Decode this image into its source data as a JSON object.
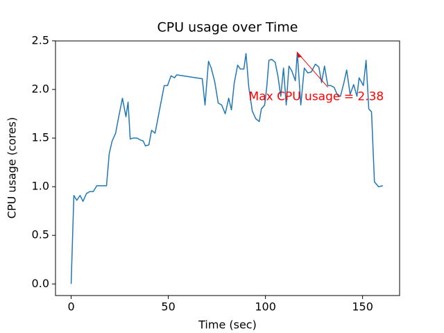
{
  "chart_data": {
    "type": "line",
    "title": "CPU usage over Time",
    "x_label": "Time (sec)",
    "y_label": "CPU usage (cores)",
    "series": [
      {
        "name": "CPU usage",
        "color": "#1f77b4",
        "x": [
          0,
          1.4,
          2.9,
          4.6,
          6.1,
          7.9,
          9.6,
          11.4,
          13.2,
          15.7,
          18.2,
          19.6,
          21.1,
          22.9,
          24.3,
          26.4,
          28.2,
          29.3,
          30.4,
          31.8,
          33.9,
          35.7,
          37.1,
          38.2,
          40,
          41.4,
          43.2,
          45.4,
          47.9,
          49.6,
          51.4,
          53.2,
          54.3,
          67.5,
          68.9,
          70.7,
          72.1,
          73.9,
          75.7,
          77.5,
          79.3,
          81.1,
          82.5,
          83.9,
          85.7,
          87.1,
          88.9,
          90,
          91.4,
          93.2,
          95,
          96.8,
          97.9,
          99.6,
          100.7,
          101.8,
          103.2,
          105,
          106.4,
          107.9,
          109.3,
          110.7,
          112.1,
          113.6,
          115.4,
          116.4,
          118.2,
          120,
          121.8,
          123.6,
          125.7,
          127.5,
          128.9,
          130.4,
          132.1,
          133.6,
          135.4,
          137.1,
          138.6,
          140.4,
          141.8,
          143.6,
          145.4,
          147.1,
          148.2,
          150.4,
          151.8,
          153.2,
          154.6,
          156.1,
          158.2,
          160.4
        ],
        "values": [
          0,
          0.91,
          0.86,
          0.91,
          0.85,
          0.93,
          0.95,
          0.95,
          1.01,
          1.01,
          1.01,
          1.34,
          1.47,
          1.55,
          1.7,
          1.91,
          1.72,
          1.87,
          1.49,
          1.5,
          1.5,
          1.48,
          1.47,
          1.42,
          1.43,
          1.58,
          1.55,
          1.78,
          2.04,
          2.04,
          2.14,
          2.12,
          2.15,
          2.11,
          1.84,
          2.29,
          2.22,
          2.08,
          1.86,
          1.84,
          1.75,
          1.91,
          1.79,
          2.06,
          2.25,
          2.21,
          2.21,
          2.37,
          2.03,
          1.78,
          1.7,
          1.67,
          1.8,
          1.84,
          2.03,
          2.3,
          2.31,
          2.28,
          2.14,
          1.93,
          2.22,
          1.84,
          2.24,
          2.19,
          2.09,
          2.38,
          1.84,
          2.22,
          2.17,
          2.18,
          2.26,
          2.23,
          2.07,
          2.24,
          2.04,
          2.04,
          2.02,
          1.94,
          1.93,
          2.07,
          2.2,
          1.95,
          2.05,
          1.93,
          2.12,
          2.04,
          2.3,
          1.8,
          1.77,
          1.05,
          1.0,
          1.01
        ]
      }
    ],
    "annotation": {
      "text": "Max CPU usage = 2.38",
      "x": 116.4,
      "y": 2.38,
      "color": "red"
    },
    "xlim": [
      -8.05,
      169.05
    ],
    "ylim": [
      -0.119,
      2.499
    ],
    "xticks": [
      0,
      50,
      100,
      150
    ],
    "yticks": [
      {
        "value": 0,
        "label": "0.0"
      },
      0.5,
      {
        "value": 1,
        "label": "1.0"
      },
      1.5,
      {
        "value": 2,
        "label": "2.0"
      },
      2.5
    ],
    "grid": false
  }
}
